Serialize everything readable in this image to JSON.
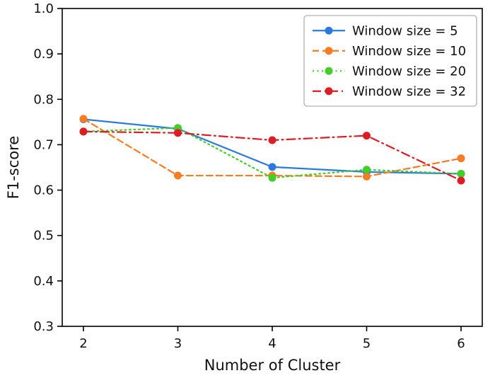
{
  "chart_data": {
    "type": "line",
    "x": [
      2,
      3,
      4,
      5,
      6
    ],
    "series": [
      {
        "name": "Window size = 5",
        "color": "#2b7bdd",
        "linestyle": "solid",
        "marker": "circle",
        "values": [
          0.756,
          0.735,
          0.651,
          0.64,
          0.636
        ]
      },
      {
        "name": "Window size = 10",
        "color": "#f97b22",
        "linestyle": "dashed",
        "marker": "circle",
        "values": [
          0.757,
          0.632,
          0.632,
          0.63,
          0.67
        ]
      },
      {
        "name": "Window size = 20",
        "color": "#44cc29",
        "linestyle": "dotted",
        "marker": "circle",
        "values": [
          0.729,
          0.737,
          0.627,
          0.645,
          0.636
        ]
      },
      {
        "name": "Window size = 32",
        "color": "#dd1c23",
        "linestyle": "dashdot",
        "marker": "circle",
        "values": [
          0.729,
          0.726,
          0.71,
          0.72,
          0.621
        ]
      }
    ],
    "title": "",
    "xlabel": "Number of Cluster",
    "ylabel": "F1-score",
    "xticks": [
      2,
      3,
      4,
      5,
      6
    ],
    "yticks": [
      0.3,
      0.4,
      0.5,
      0.6,
      0.7,
      0.8,
      0.9,
      1.0
    ],
    "ylim": [
      0.3,
      1.0
    ],
    "grid": false,
    "legend_position": "upper right",
    "axis_color": "#000000",
    "legend_border_color": "#b0b0b0"
  }
}
